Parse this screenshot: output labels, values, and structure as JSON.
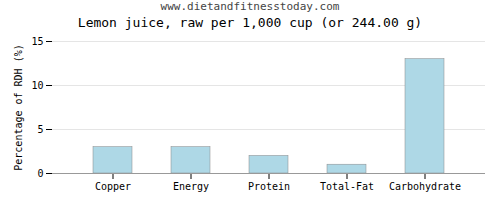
{
  "chart_data": {
    "type": "bar",
    "title": "Lemon juice, raw per 1,000 cup (or 244.00 g)",
    "subtitle": "www.dietandfitnesstoday.com",
    "categories": [
      "Copper",
      "Energy",
      "Protein",
      "Total-Fat",
      "Carbohydrate"
    ],
    "values": [
      3.0,
      3.0,
      2.0,
      1.0,
      13.0
    ],
    "color": "#aed8e6",
    "ylabel": "Percentage of RDH (%)",
    "ylim": [
      0,
      15
    ],
    "yticks": [
      0,
      5,
      10,
      15
    ],
    "grid": true
  }
}
